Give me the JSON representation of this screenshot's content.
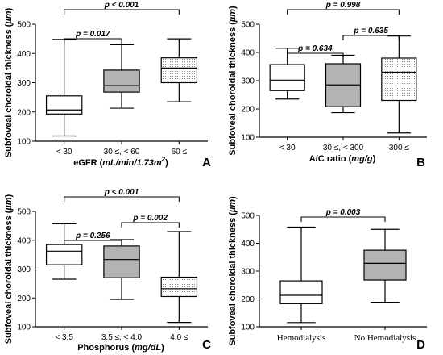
{
  "chart_data": [
    {
      "type": "boxplot",
      "panel": "A",
      "ylabel_text": "Subfoveal choroidal thickness (",
      "ylabel_unit": "µm",
      "ylabel_end": ")",
      "xlabel_text": "eGFR (",
      "xlabel_unit": "mL/min/1.73m",
      "xlabel_sup": "2",
      "xlabel_end": ")",
      "ylim": [
        100,
        500
      ],
      "yticks": [
        "100",
        "200",
        "300",
        "400",
        "500"
      ],
      "categories": [
        "< 30",
        "30 ≤, < 60",
        "60 ≤"
      ],
      "boxes": [
        {
          "min": 118,
          "q1": 193,
          "median": 207,
          "q3": 255,
          "max": 448,
          "fill": "white"
        },
        {
          "min": 213,
          "q1": 268,
          "median": 290,
          "q3": 343,
          "max": 430,
          "fill": "gray"
        },
        {
          "min": 235,
          "q1": 300,
          "median": 350,
          "q3": 385,
          "max": 450,
          "fill": "dotted"
        }
      ],
      "brackets": [
        {
          "from": 0,
          "to": 1,
          "p": "p = 0.017",
          "level": 1
        },
        {
          "from": 0,
          "to": 2,
          "p": "p < 0.001",
          "level": 2
        }
      ]
    },
    {
      "type": "boxplot",
      "panel": "B",
      "ylabel_text": "Subfoveal choroidal thickness (",
      "ylabel_unit": "µm",
      "ylabel_end": ")",
      "xlabel_text": "A/C ratio (",
      "xlabel_unit": "mg/g",
      "xlabel_sup": "",
      "xlabel_end": ")",
      "ylim": [
        100,
        500
      ],
      "yticks": [
        "100",
        "200",
        "300",
        "400",
        "500"
      ],
      "categories": [
        "< 30",
        "30 ≤, < 300",
        "300 ≤"
      ],
      "boxes": [
        {
          "min": 235,
          "q1": 265,
          "median": 302,
          "q3": 357,
          "max": 415,
          "fill": "white"
        },
        {
          "min": 187,
          "q1": 208,
          "median": 285,
          "q3": 360,
          "max": 390,
          "fill": "gray"
        },
        {
          "min": 115,
          "q1": 230,
          "median": 330,
          "q3": 380,
          "max": 458,
          "fill": "dotted"
        }
      ],
      "brackets": [
        {
          "from": 0,
          "to": 1,
          "p": "p = 0.634",
          "level": 1
        },
        {
          "from": 1,
          "to": 2,
          "p": "p = 0.635",
          "level": 2
        },
        {
          "from": 0,
          "to": 2,
          "p": "p = 0.998",
          "level": 3
        }
      ]
    },
    {
      "type": "boxplot",
      "panel": "C",
      "ylabel_text": "Subfoveal choroidal thickness (",
      "ylabel_unit": "µm",
      "ylabel_end": ")",
      "xlabel_text": "Phosphorus (",
      "xlabel_unit": "mg/dL",
      "xlabel_sup": "",
      "xlabel_end": ")",
      "ylim": [
        100,
        500
      ],
      "yticks": [
        "100",
        "200",
        "300",
        "400",
        "500"
      ],
      "categories": [
        "< 3.5",
        "3.5 ≤, < 4.0",
        "4.0 ≤"
      ],
      "boxes": [
        {
          "min": 265,
          "q1": 315,
          "median": 362,
          "q3": 385,
          "max": 457,
          "fill": "white"
        },
        {
          "min": 195,
          "q1": 270,
          "median": 333,
          "q3": 380,
          "max": 402,
          "fill": "gray"
        },
        {
          "min": 115,
          "q1": 205,
          "median": 232,
          "q3": 272,
          "max": 430,
          "fill": "dotted"
        }
      ],
      "brackets": [
        {
          "from": 0,
          "to": 1,
          "p": "p = 0.256",
          "level": 1
        },
        {
          "from": 1,
          "to": 2,
          "p": "p = 0.002",
          "level": 2
        },
        {
          "from": 0,
          "to": 2,
          "p": "p < 0.001",
          "level": 3
        }
      ]
    },
    {
      "type": "boxplot",
      "panel": "D",
      "ylabel_text": "Subfoveal choroidal thickness (",
      "ylabel_unit": "µm",
      "ylabel_end": ")",
      "xlabel_text": "",
      "xlabel_unit": "",
      "xlabel_sup": "",
      "xlabel_end": "",
      "ylim": [
        100,
        500
      ],
      "yticks": [
        "100",
        "200",
        "300",
        "400",
        "500"
      ],
      "categories": [
        "Hemodialysis",
        "No Hemodialysis"
      ],
      "boxes": [
        {
          "min": 115,
          "q1": 183,
          "median": 213,
          "q3": 265,
          "max": 458,
          "fill": "white"
        },
        {
          "min": 188,
          "q1": 268,
          "median": 328,
          "q3": 375,
          "max": 450,
          "fill": "gray"
        }
      ],
      "brackets": [
        {
          "from": 0,
          "to": 1,
          "p": "p = 0.003",
          "level": 1
        }
      ]
    }
  ]
}
